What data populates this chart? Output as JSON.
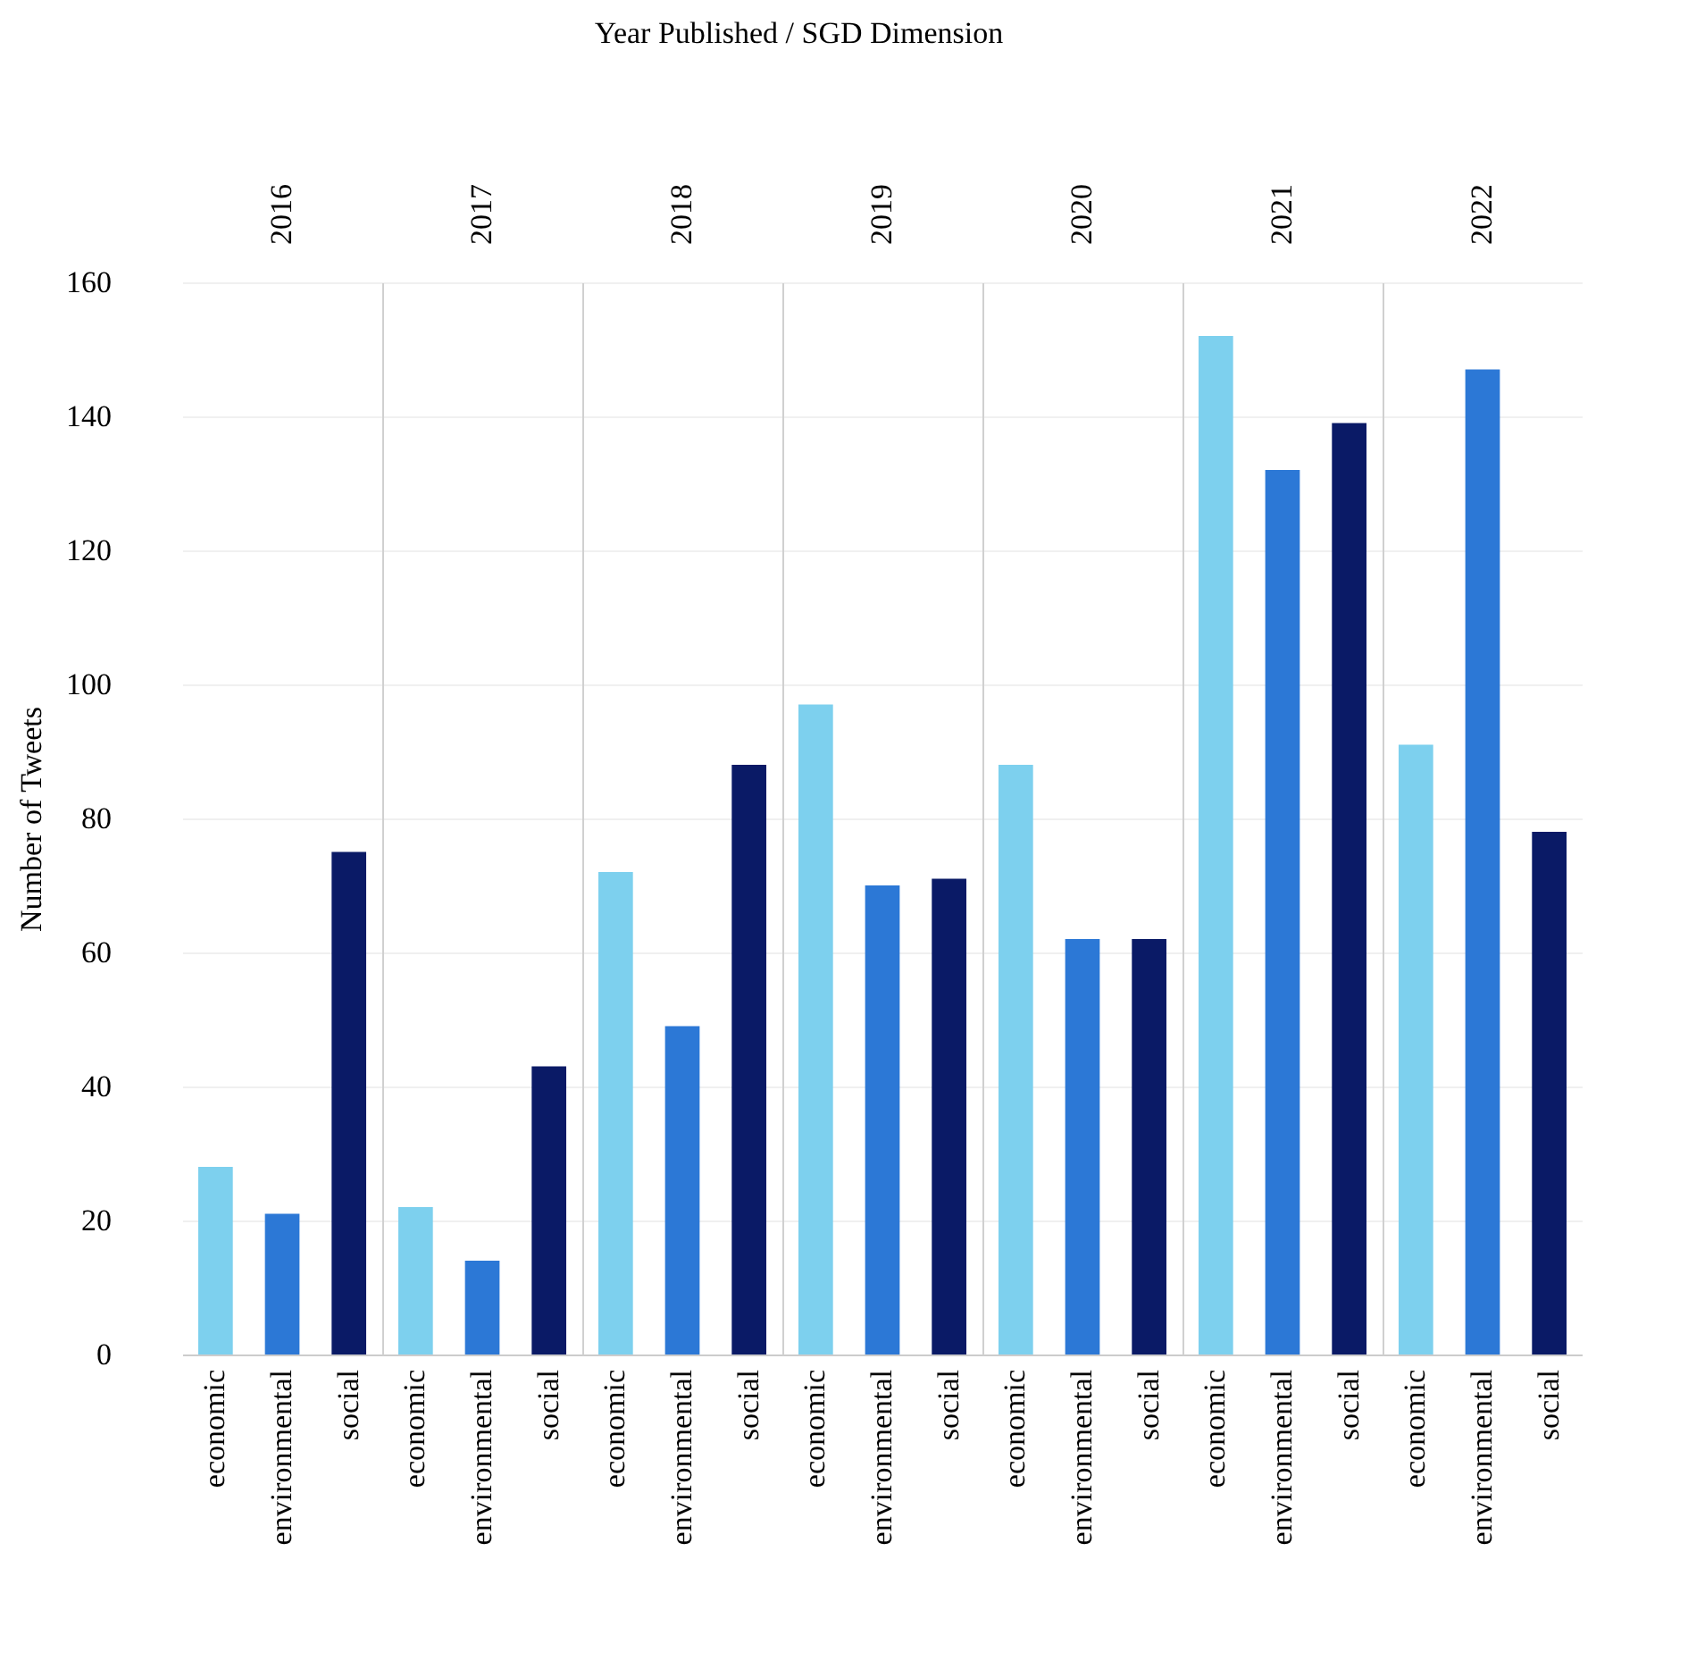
{
  "chart_data": {
    "type": "bar",
    "annotations": [
      "Year Published / SGD Dimension"
    ],
    "ylabel": "Number of Tweets",
    "categories": [
      "2016",
      "2017",
      "2018",
      "2019",
      "2020",
      "2021",
      "2022"
    ],
    "series": [
      {
        "name": "economic",
        "color": "#7dd0ee",
        "values": [
          28,
          22,
          72,
          97,
          88,
          152,
          91
        ]
      },
      {
        "name": "environmental",
        "color": "#2c78d6",
        "values": [
          21,
          14,
          49,
          70,
          62,
          132,
          147
        ]
      },
      {
        "name": "social",
        "color": "#0a1a66",
        "values": [
          75,
          43,
          88,
          71,
          62,
          139,
          78
        ]
      }
    ],
    "ylim": [
      0,
      160
    ],
    "yticks": [
      0,
      20,
      40,
      60,
      80,
      100,
      120,
      140,
      160
    ],
    "grid": "y"
  }
}
